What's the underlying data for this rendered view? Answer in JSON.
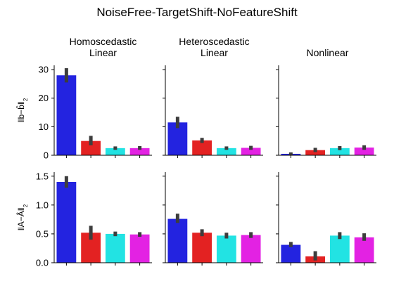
{
  "title": "NoiseFree-TargetShift-NoFeatureShift",
  "chart_data": {
    "type": "bar",
    "colors": [
      "#2323e0",
      "#e32222",
      "#22e3e3",
      "#e322e3"
    ],
    "columns": [
      [
        "Homoscedastic",
        "Linear"
      ],
      [
        "Heteroscedastic",
        "Linear"
      ],
      [
        "Nonlinear"
      ]
    ],
    "rows": [
      {
        "ylabel_main": "‖b−b̂‖",
        "ylabel_sub": "2",
        "ylim": [
          0,
          31.5
        ],
        "yticks": [
          "0",
          "10",
          "20",
          "30"
        ],
        "ytick_values": [
          0,
          10,
          20,
          30
        ],
        "panels": [
          {
            "values": [
              28,
              5,
              2.5,
              2.5
            ],
            "errors": [
              [
                25.5,
                30.5
              ],
              [
                3.5,
                6.8
              ],
              [
                1.9,
                3.1
              ],
              [
                1.9,
                3.2
              ]
            ]
          },
          {
            "values": [
              11.5,
              5.2,
              2.5,
              2.6
            ],
            "errors": [
              [
                9.5,
                13.5
              ],
              [
                4.3,
                6.1
              ],
              [
                1.9,
                3.1
              ],
              [
                1.9,
                3.3
              ]
            ]
          },
          {
            "values": [
              0.5,
              1.8,
              2.5,
              2.7
            ],
            "errors": [
              [
                0.1,
                1.0
              ],
              [
                1.1,
                2.6
              ],
              [
                1.8,
                3.2
              ],
              [
                1.9,
                3.5
              ]
            ]
          }
        ]
      },
      {
        "ylabel_main": "‖A−Â‖",
        "ylabel_sub": "2",
        "ylim": [
          0,
          1.57
        ],
        "yticks": [
          "0.0",
          "0.5",
          "1.0",
          "1.5"
        ],
        "ytick_values": [
          0,
          0.5,
          1.0,
          1.5
        ],
        "panels": [
          {
            "values": [
              1.4,
              0.52,
              0.5,
              0.49
            ],
            "errors": [
              [
                1.3,
                1.5
              ],
              [
                0.4,
                0.64
              ],
              [
                0.46,
                0.54
              ],
              [
                0.45,
                0.53
              ]
            ]
          },
          {
            "values": [
              0.76,
              0.52,
              0.47,
              0.48
            ],
            "errors": [
              [
                0.69,
                0.85
              ],
              [
                0.46,
                0.58
              ],
              [
                0.42,
                0.52
              ],
              [
                0.43,
                0.53
              ]
            ]
          },
          {
            "values": [
              0.31,
              0.11,
              0.47,
              0.44
            ],
            "errors": [
              [
                0.27,
                0.36
              ],
              [
                0.04,
                0.2
              ],
              [
                0.41,
                0.53
              ],
              [
                0.38,
                0.51
              ]
            ]
          }
        ]
      }
    ]
  }
}
